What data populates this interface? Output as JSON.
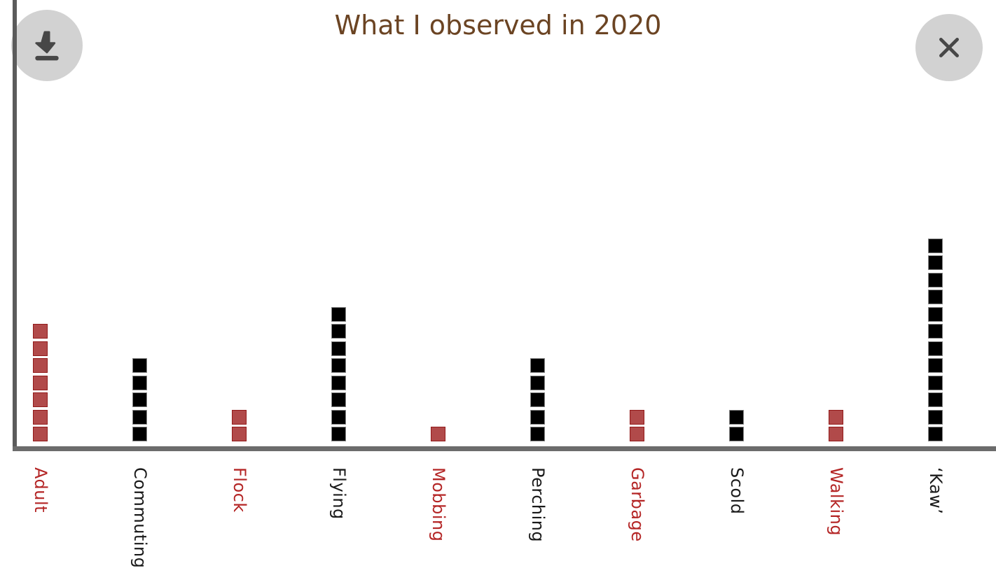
{
  "header": {
    "title_color": "#6b4423"
  },
  "buttons": {
    "download_icon": "download-icon",
    "close_icon": "close-icon",
    "circle_color": "#d2d2d2",
    "icon_color": "#474747"
  },
  "axes": {
    "color": "#5b5b5b"
  },
  "chart_data": {
    "type": "bar",
    "variant": "unit-squares",
    "title": "What I observed in 2020",
    "categories": [
      "Adult",
      "Commuting",
      "Flock",
      "Flying",
      "Mobbing",
      "Perching",
      "Garbage",
      "Scold",
      "Walking",
      "‘Kaw’"
    ],
    "values": [
      7,
      5,
      2,
      8,
      1,
      5,
      2,
      2,
      2,
      12
    ],
    "category_colors": [
      "red",
      "black",
      "red",
      "black",
      "red",
      "black",
      "red",
      "black",
      "red",
      "black"
    ],
    "square_colors": {
      "red": "#b14a4a",
      "black": "#000000"
    },
    "square_border_colors": {
      "red": "#921a1a",
      "black": "#858585"
    },
    "label_colors": {
      "red": "#b42525",
      "black": "#1a1a1a"
    },
    "xlabel": "",
    "ylabel": "",
    "ylim": [
      0,
      12
    ],
    "grid": false,
    "legend": false,
    "unit_per_square": 1
  }
}
